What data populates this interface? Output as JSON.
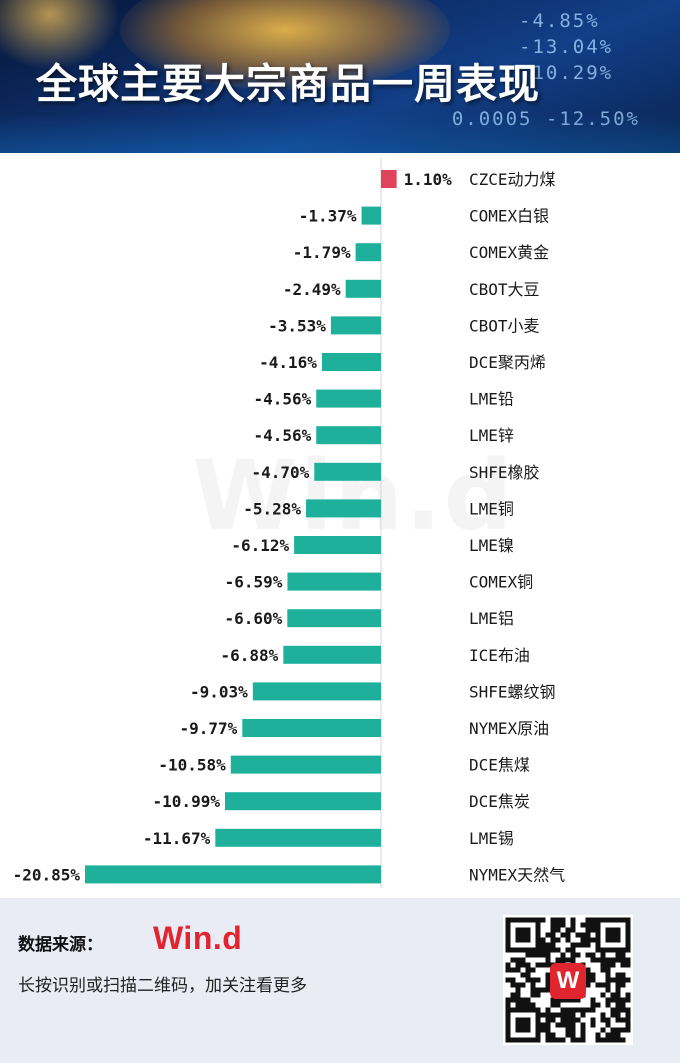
{
  "header": {
    "title": "全球主要大宗商品一周表现"
  },
  "chart_data": {
    "type": "bar",
    "orientation": "horizontal",
    "categories": [
      "CZCE动力煤",
      "COMEX白银",
      "COMEX黄金",
      "CBOT大豆",
      "CBOT小麦",
      "DCE聚丙烯",
      "LME铅",
      "LME锌",
      "SHFE橡胶",
      "LME铜",
      "LME镍",
      "COMEX铜",
      "LME铝",
      "ICE布油",
      "SHFE螺纹钢",
      "NYMEX原油",
      "DCE焦煤",
      "DCE焦炭",
      "LME锡",
      "NYMEX天然气"
    ],
    "values": [
      1.1,
      -1.37,
      -1.79,
      -2.49,
      -3.53,
      -4.16,
      -4.56,
      -4.56,
      -4.7,
      -5.28,
      -6.12,
      -6.59,
      -6.6,
      -6.88,
      -9.03,
      -9.77,
      -10.58,
      -10.99,
      -11.67,
      -20.85
    ],
    "value_labels": [
      "1.10%",
      "-1.37%",
      "-1.79%",
      "-2.49%",
      "-3.53%",
      "-4.16%",
      "-4.56%",
      "-4.56%",
      "-4.70%",
      "-5.28%",
      "-6.12%",
      "-6.59%",
      "-6.60%",
      "-6.88%",
      "-9.03%",
      "-9.77%",
      "-10.58%",
      "-10.99%",
      "-11.67%",
      "-20.85%"
    ],
    "unit": "%",
    "positive_color": "#e0435a",
    "negative_color": "#1fb09c",
    "xlim": [
      -20.85,
      1.1
    ],
    "grid": false
  },
  "watermark": "Win.d",
  "footer": {
    "source_label": "数据来源：",
    "logo_text": "Win.d",
    "cta": "长按识别或扫描二维码，加关注看更多",
    "qr_badge": "W"
  }
}
